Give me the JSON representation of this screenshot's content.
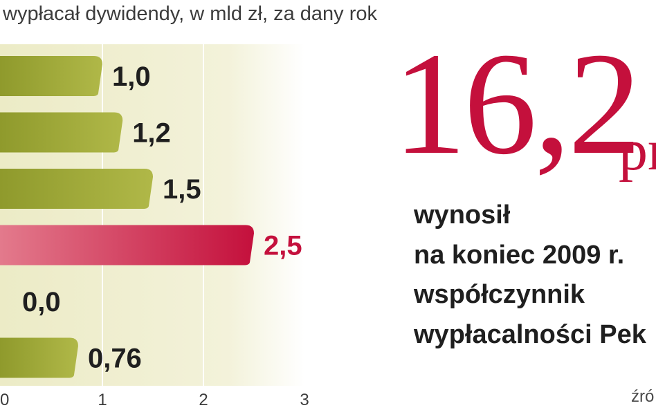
{
  "subtitle": "wypłacał dywidendy, w mld zł, za dany rok",
  "chart_data": {
    "type": "bar",
    "orientation": "horizontal",
    "values": [
      1.0,
      1.2,
      1.5,
      2.5,
      0.0,
      0.76
    ],
    "value_labels": [
      "1,0",
      "1,2",
      "1,5",
      "2,5",
      "0,0",
      "0,76"
    ],
    "highlight_index": 3,
    "xlim": [
      0,
      3
    ],
    "xticks": [
      0,
      1,
      2,
      3
    ],
    "xtick_labels": [
      "0",
      "1",
      "2",
      "3"
    ],
    "grid": "vertical",
    "colors": {
      "bar": "#9aa534",
      "highlight": "#c4103c",
      "background": "#f2f1d8"
    }
  },
  "callout": {
    "value": "16,2",
    "unit": "pr",
    "lines": [
      "wynosił",
      "na koniec 2009 r.",
      "współczynnik",
      "wypłacalności Pek"
    ]
  },
  "source": "źró",
  "colors": {
    "accent": "#c4103c",
    "text": "#1f1f1f"
  }
}
